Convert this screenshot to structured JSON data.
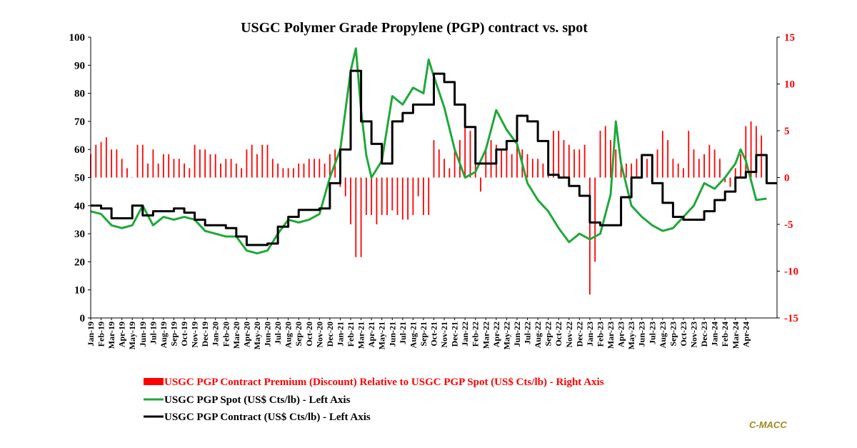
{
  "chart_data": {
    "type": "line",
    "title": "USGC Polymer Grade Propylene (PGP) contract vs. spot",
    "left_axis": {
      "ylim": [
        0,
        100
      ],
      "ticks": [
        0,
        10,
        20,
        30,
        40,
        50,
        60,
        70,
        80,
        90,
        100
      ]
    },
    "right_axis": {
      "ylim": [
        -15,
        15
      ],
      "ticks": [
        -15,
        -10,
        -5,
        0,
        5,
        10,
        15
      ],
      "color": "#ff0000"
    },
    "x_tick_labels": [
      "Jan-19",
      "Feb-19",
      "Mar-19",
      "Apr-19",
      "May-19",
      "Jun-19",
      "Jul-19",
      "Aug-19",
      "Sep-19",
      "Oct-19",
      "Nov-19",
      "Dec-19",
      "Jan-20",
      "Feb-20",
      "Mar-20",
      "Apr-20",
      "May-20",
      "Jun-20",
      "Jul-20",
      "Aug-20",
      "Sep-20",
      "Oct-20",
      "Nov-20",
      "Dec-20",
      "Jan-21",
      "Feb-21",
      "Mar-21",
      "Apr-21",
      "May-21",
      "Jun-21",
      "Jul-21",
      "Aug-21",
      "Sep-21",
      "Oct-21",
      "Nov-21",
      "Dec-21",
      "Jan-22",
      "Feb-22",
      "Mar-22",
      "Apr-22",
      "May-22",
      "Jun-22",
      "Jul-22",
      "Aug-22",
      "Sep-22",
      "Oct-22",
      "Nov-22",
      "Dec-22",
      "Jan-23",
      "Feb-23",
      "Mar-23",
      "Apr-23",
      "May-23",
      "Jun-23",
      "Jul-23",
      "Aug-23",
      "Sep-23",
      "Oct-23",
      "Nov-23",
      "Dec-23",
      "Jan-24",
      "Feb-24",
      "Mar-24",
      "Apr-24"
    ],
    "x_range": [
      0,
      66
    ],
    "grid": false,
    "legend_position": "bottom",
    "series": [
      {
        "name": "USGC PGP Contract Premium (Discount) Relative to USGC PGP Spot (US$ Cts/lb) - Right Axis",
        "type": "bar",
        "axis": "right",
        "color": "#ff0000",
        "x": [
          0,
          0.5,
          1,
          1.5,
          2,
          2.5,
          3,
          3.5,
          4,
          4.5,
          5,
          5.5,
          6,
          6.5,
          7,
          7.5,
          8,
          8.5,
          9,
          9.5,
          10,
          10.5,
          11,
          11.5,
          12,
          12.5,
          13,
          13.5,
          14,
          14.5,
          15,
          15.5,
          16,
          16.5,
          17,
          17.5,
          18,
          18.5,
          19,
          19.5,
          20,
          20.5,
          21,
          21.5,
          22,
          22.5,
          23,
          23.5,
          24,
          24.5,
          25,
          25.5,
          26,
          26.5,
          27,
          27.5,
          28,
          28.5,
          29,
          29.5,
          30,
          30.5,
          31,
          31.5,
          32,
          32.5,
          33,
          33.5,
          34,
          34.5,
          35,
          35.5,
          36,
          36.5,
          37,
          37.5,
          38,
          38.5,
          39,
          39.5,
          40,
          40.5,
          41,
          41.5,
          42,
          42.5,
          43,
          43.5,
          44,
          44.5,
          45,
          45.5,
          46,
          46.5,
          47,
          47.5,
          48,
          48.5,
          49,
          49.5,
          50,
          50.5,
          51,
          51.5,
          52,
          52.5,
          53,
          53.5,
          54,
          54.5,
          55,
          55.5,
          56,
          56.5,
          57,
          57.5,
          58,
          58.5,
          59,
          59.5,
          60,
          60.5,
          61,
          61.5,
          62,
          62.5,
          63,
          63.5,
          64,
          64.5
        ],
        "values": [
          2.5,
          3.5,
          3.8,
          4.3,
          3.0,
          3.0,
          2.0,
          1.0,
          0.0,
          3.5,
          3.5,
          1.5,
          3.0,
          1.5,
          2.5,
          2.5,
          2.0,
          2.0,
          1.5,
          1.0,
          3.5,
          3.0,
          3.0,
          2.5,
          2.5,
          1.5,
          2.0,
          2.0,
          1.5,
          1.0,
          3.0,
          3.5,
          2.5,
          3.5,
          3.5,
          2.0,
          1.5,
          1.0,
          1.0,
          1.0,
          1.5,
          1.5,
          2.0,
          2.0,
          2.0,
          1.5,
          2.5,
          3.0,
          -1.0,
          -2.0,
          -5.0,
          -8.5,
          -8.5,
          -4.0,
          -4.0,
          -5.0,
          -4.0,
          -4.0,
          -3.5,
          -4.0,
          -4.5,
          -4.5,
          -4.0,
          -2.0,
          -4.0,
          -4.0,
          4.0,
          3.0,
          2.0,
          1.0,
          3.0,
          4.0,
          5.5,
          5.0,
          4.0,
          -1.5,
          3.0,
          4.0,
          3.5,
          3.0,
          3.0,
          2.5,
          3.5,
          3.0,
          2.5,
          2.0,
          2.0,
          1.5,
          4.0,
          5.0,
          5.0,
          4.0,
          3.5,
          3.0,
          3.0,
          3.5,
          -12.5,
          -9.0,
          5.0,
          5.5,
          4.0,
          3.0,
          2.0,
          1.5,
          1.5,
          2.0,
          2.0,
          2.0,
          2.5,
          3.0,
          5.0,
          4.0,
          2.0,
          1.5,
          1.0,
          5.0,
          3.0,
          2.0,
          2.5,
          3.5,
          3.0,
          2.0,
          -0.5,
          -1.0,
          1.0,
          2.5,
          5.5,
          6.0,
          5.5,
          4.5
        ]
      },
      {
        "name": "USGC PGP Spot (US$ Cts/lb) - Left Axis",
        "type": "line",
        "axis": "left",
        "color": "#1fa83a",
        "x": [
          0,
          1,
          2,
          3,
          4,
          5,
          6,
          7,
          8,
          9,
          10,
          11,
          12,
          13,
          14,
          15,
          16,
          17,
          18,
          19,
          20,
          21,
          22,
          23,
          24,
          25,
          25.5,
          26,
          26.5,
          27,
          28,
          29,
          30,
          31,
          32,
          32.5,
          33,
          34,
          35,
          36,
          37,
          38,
          39,
          40,
          41,
          42,
          43,
          44,
          45,
          46,
          47,
          48,
          49,
          50,
          50.5,
          51,
          52,
          53,
          54,
          55,
          56,
          57,
          58,
          59,
          60,
          61,
          62,
          62.5,
          63,
          64,
          65
        ],
        "values": [
          38,
          37,
          33,
          32,
          33,
          40,
          33,
          36,
          35,
          36,
          35,
          31,
          30,
          29,
          29,
          24,
          23,
          24,
          30,
          35,
          34,
          35,
          37,
          50,
          60,
          88,
          96,
          74,
          58,
          50,
          56,
          79,
          76,
          82,
          80,
          92,
          86,
          75,
          60,
          50,
          52,
          60,
          74,
          67,
          62,
          48,
          42,
          38,
          32,
          27,
          30,
          28,
          30,
          44,
          70,
          55,
          40,
          36,
          33,
          31,
          32,
          36,
          40,
          48,
          46,
          50,
          55,
          60,
          56,
          42,
          42.5
        ]
      },
      {
        "name": "USGC PGP Contract (US$ Cts/lb) - Left Axis",
        "type": "step",
        "axis": "left",
        "color": "#000000",
        "x": [
          0,
          1,
          2,
          3,
          4,
          5,
          6,
          7,
          8,
          9,
          10,
          11,
          12,
          13,
          14,
          15,
          16,
          17,
          18,
          19,
          20,
          21,
          22,
          23,
          24,
          25,
          25.5,
          26,
          27,
          28,
          29,
          30,
          31,
          32,
          33,
          34,
          35,
          36,
          37,
          38,
          39,
          40,
          41,
          42,
          43,
          44,
          45,
          46,
          47,
          48,
          49,
          50,
          51,
          52,
          53,
          54,
          55,
          56,
          57,
          58,
          59,
          60,
          61,
          62,
          63,
          64,
          65
        ],
        "values": [
          40,
          39,
          35.5,
          35.5,
          40,
          36.5,
          38,
          38,
          39,
          37.5,
          35,
          33,
          33,
          32,
          29,
          26,
          26,
          26.5,
          32.5,
          36,
          38.5,
          38.5,
          39,
          48,
          60,
          88,
          88,
          70,
          62,
          55,
          70,
          73,
          76,
          76,
          87,
          84,
          76,
          68,
          55,
          55,
          60,
          63,
          72,
          70,
          63,
          51,
          50,
          47,
          43.5,
          34,
          33,
          33,
          43,
          50,
          58,
          48,
          41,
          36,
          35,
          35,
          38,
          42,
          45,
          50,
          52,
          58,
          48
        ]
      }
    ]
  },
  "brand": {
    "text": "C-MACC",
    "color": "#a08a1e"
  }
}
